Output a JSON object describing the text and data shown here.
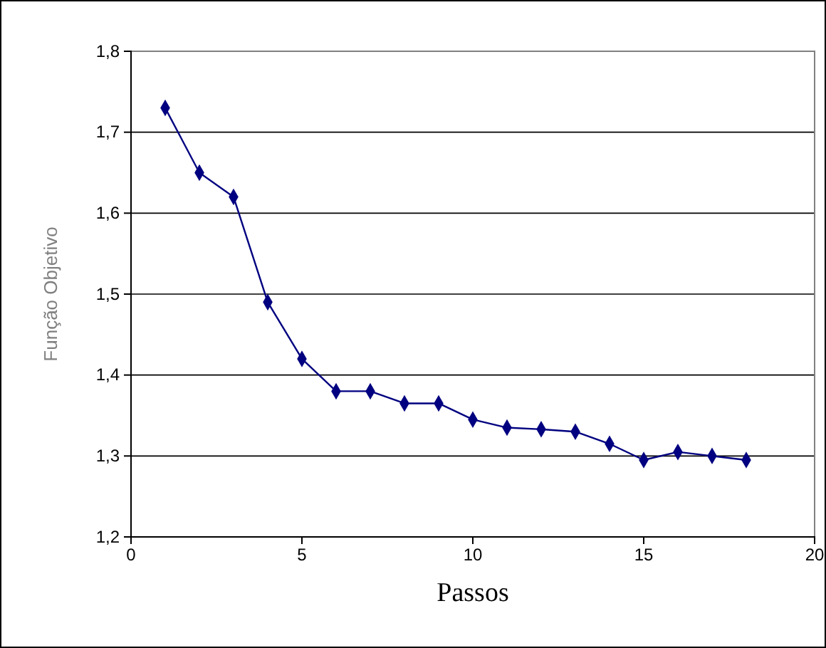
{
  "chart_data": {
    "type": "line",
    "xlabel": "Passos",
    "ylabel": "Função Objetivo",
    "x": [
      1,
      2,
      3,
      4,
      5,
      6,
      7,
      8,
      9,
      10,
      11,
      12,
      13,
      14,
      15,
      16,
      17,
      18
    ],
    "series": [
      {
        "color": "#000080",
        "values": [
          1.73,
          1.65,
          1.62,
          1.49,
          1.42,
          1.38,
          1.38,
          1.365,
          1.365,
          1.345,
          1.335,
          1.333,
          1.33,
          1.315,
          1.295,
          1.305,
          1.3,
          1.295
        ]
      }
    ],
    "xlim": [
      0,
      20
    ],
    "xticks": [
      0,
      5,
      10,
      15,
      20
    ],
    "ylim": [
      1.2,
      1.8
    ],
    "yticks": [
      {
        "value": 1.2,
        "label": "1,2"
      },
      {
        "value": 1.3,
        "label": "1,3"
      },
      {
        "value": 1.4,
        "label": "1,4"
      },
      {
        "value": 1.5,
        "label": "1,5"
      },
      {
        "value": 1.6,
        "label": "1,6"
      },
      {
        "value": 1.7,
        "label": "1,7"
      },
      {
        "value": 1.8,
        "label": "1,8"
      }
    ],
    "grid": "y",
    "marker": "diamond",
    "line_style": "solid"
  }
}
